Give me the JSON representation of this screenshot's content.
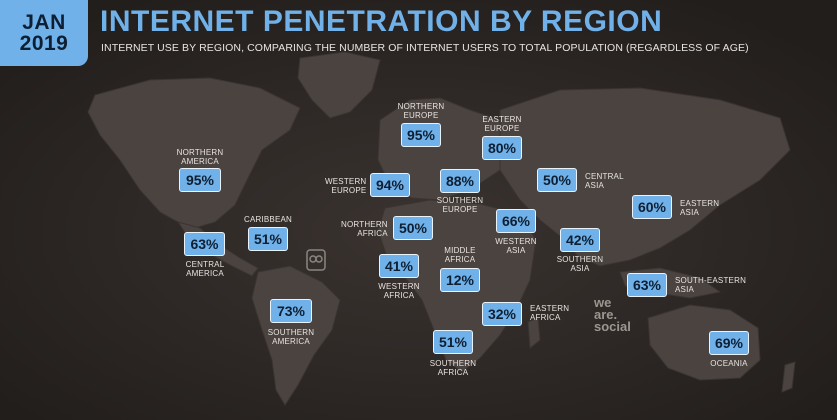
{
  "header": {
    "date_month": "JAN",
    "date_year": "2019",
    "title": "INTERNET PENETRATION BY REGION",
    "subtitle": "INTERNET USE BY REGION, COMPARING THE NUMBER OF INTERNET USERS TO TOTAL POPULATION (REGARDLESS OF AGE)"
  },
  "colors": {
    "accent": "#6fb1e8",
    "background": "#2b2624",
    "land": "#4a4340"
  },
  "regions": [
    {
      "id": "northern-america",
      "name": "NORTHERN\nAMERICA",
      "value": "95%"
    },
    {
      "id": "caribbean",
      "name": "CARIBBEAN",
      "value": "51%"
    },
    {
      "id": "central-america",
      "name": "CENTRAL\nAMERICA",
      "value": "63%"
    },
    {
      "id": "southern-america",
      "name": "SOUTHERN\nAMERICA",
      "value": "73%"
    },
    {
      "id": "northern-europe",
      "name": "NORTHERN\nEUROPE",
      "value": "95%"
    },
    {
      "id": "eastern-europe",
      "name": "EASTERN\nEUROPE",
      "value": "80%"
    },
    {
      "id": "western-europe",
      "name": "WESTERN\nEUROPE",
      "value": "94%"
    },
    {
      "id": "southern-europe",
      "name": "SOUTHERN\nEUROPE",
      "value": "88%"
    },
    {
      "id": "northern-africa",
      "name": "NORTHERN\nAFRICA",
      "value": "50%"
    },
    {
      "id": "western-africa",
      "name": "WESTERN\nAFRICA",
      "value": "41%"
    },
    {
      "id": "middle-africa",
      "name": "MIDDLE\nAFRICA",
      "value": "12%"
    },
    {
      "id": "eastern-africa",
      "name": "EASTERN\nAFRICA",
      "value": "32%"
    },
    {
      "id": "southern-africa",
      "name": "SOUTHERN\nAFRICA",
      "value": "51%"
    },
    {
      "id": "western-asia",
      "name": "WESTERN\nASIA",
      "value": "66%"
    },
    {
      "id": "central-asia",
      "name": "CENTRAL\nASIA",
      "value": "50%"
    },
    {
      "id": "southern-asia",
      "name": "SOUTHERN\nASIA",
      "value": "42%"
    },
    {
      "id": "eastern-asia",
      "name": "EASTERN\nASIA",
      "value": "60%"
    },
    {
      "id": "south-eastern-asia",
      "name": "SOUTH-EASTERN\nASIA",
      "value": "63%"
    },
    {
      "id": "oceania",
      "name": "OCEANIA",
      "value": "69%"
    }
  ],
  "branding": {
    "logo_text": "we\nare.\nsocial"
  }
}
